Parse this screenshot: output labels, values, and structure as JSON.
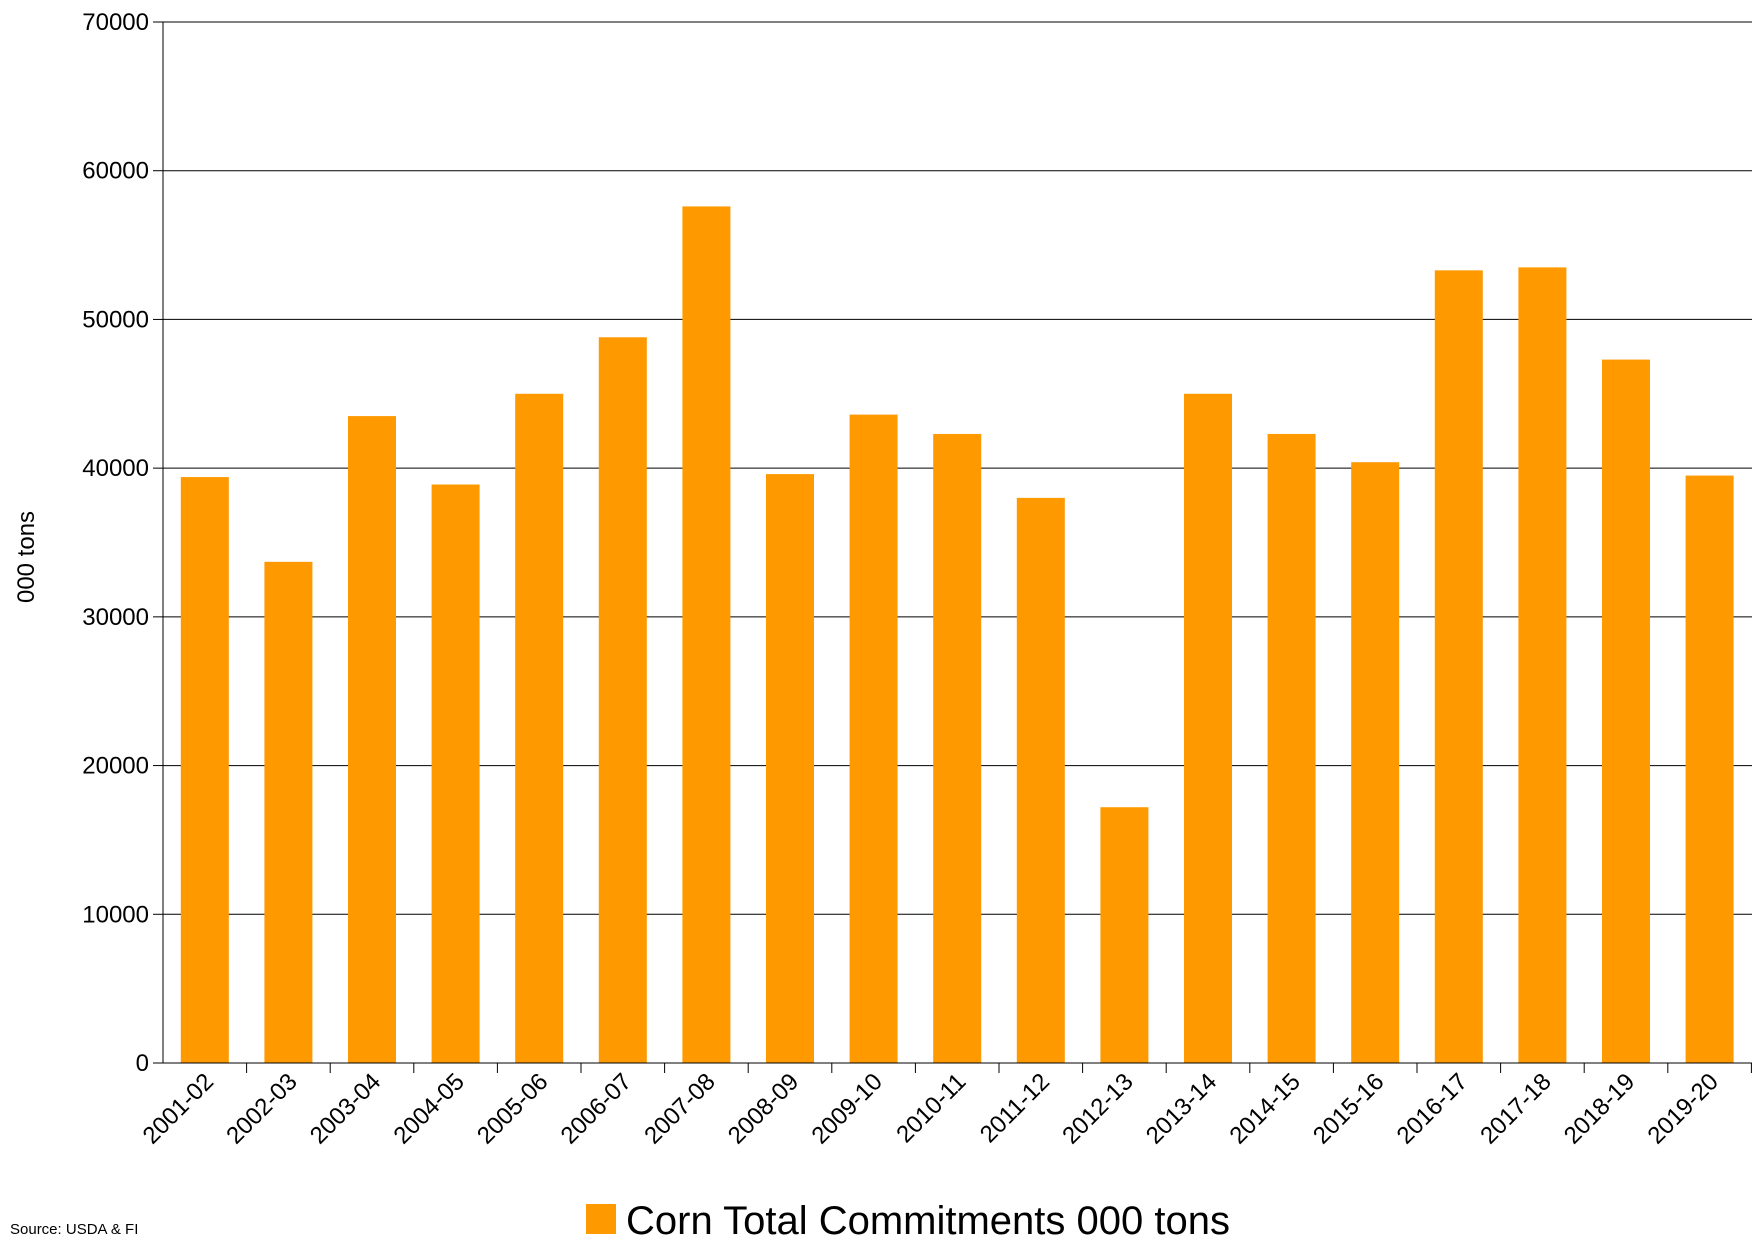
{
  "chart_data": {
    "type": "bar",
    "categories": [
      "2001-02",
      "2002-03",
      "2003-04",
      "2004-05",
      "2005-06",
      "2006-07",
      "2007-08",
      "2008-09",
      "2009-10",
      "2010-11",
      "2011-12",
      "2012-13",
      "2013-14",
      "2014-15",
      "2015-16",
      "2016-17",
      "2017-18",
      "2018-19",
      "2019-20"
    ],
    "series": [
      {
        "name": "Corn Total Commitments 000 tons",
        "values": [
          39400,
          33700,
          43500,
          38900,
          45000,
          48800,
          57600,
          39600,
          43600,
          42300,
          38000,
          17200,
          45000,
          42300,
          40400,
          53300,
          53500,
          47300,
          39500
        ]
      }
    ],
    "ylabel": "000 tons",
    "xlabel": "",
    "ylim": [
      0,
      70000
    ],
    "yticks": [
      0,
      10000,
      20000,
      30000,
      40000,
      50000,
      60000,
      70000
    ],
    "grid": true,
    "legend_position": "bottom",
    "bar_color": "#FF9900"
  },
  "source_note": "Source: USDA & FI"
}
